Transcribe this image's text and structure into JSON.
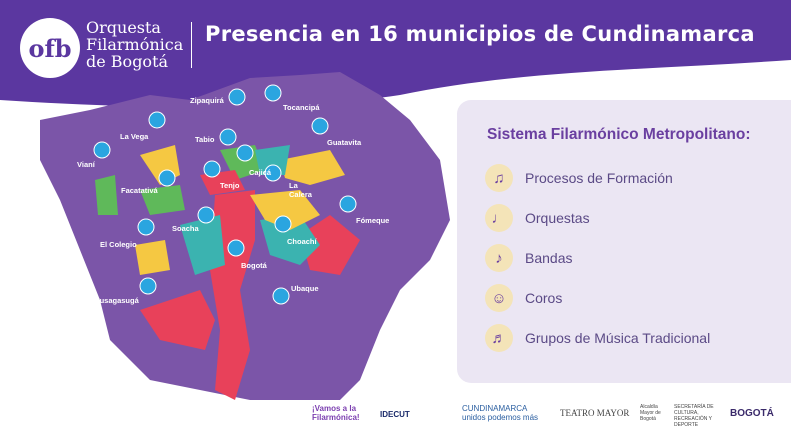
{
  "header": {
    "logo": "ofb",
    "brand_lines": [
      "Orquesta",
      "Filarmónica",
      "de Bogotá"
    ],
    "title": "Presencia en 16 municipios de Cundinamarca"
  },
  "map": {
    "municipalities": [
      "Zipaquirá",
      "Tocancipá",
      "La Vega",
      "Tabio",
      "Guatavita",
      "Vianí",
      "Cajicá",
      "Facatativá",
      "Tenjo",
      "La Calera",
      "Fómeque",
      "Soacha",
      "Choachí",
      "El Colegio",
      "Bogotá",
      "Ubaque",
      "Fusagasugá"
    ]
  },
  "panel": {
    "title": "Sistema Filarmónico Metropolitano:",
    "items": [
      {
        "label": "Procesos de Formación",
        "icon": "sheet-music-icon"
      },
      {
        "label": "Orquestas",
        "icon": "violin-icon"
      },
      {
        "label": "Bandas",
        "icon": "saxophone-icon"
      },
      {
        "label": "Coros",
        "icon": "choir-icon"
      },
      {
        "label": "Grupos de Música Tradicional",
        "icon": "guitar-icon"
      }
    ]
  },
  "footer": {
    "logos": [
      "¡Vamos a la Filarmónica!",
      "IDECUT",
      "CUNDINAMARCA unidos podemos más",
      "TEATRO MAYOR",
      "Alcaldía Mayor de Bogotá",
      "SECRETARÍA DE CULTURA, RECREACIÓN Y DEPORTE",
      "BOGOTÁ"
    ]
  },
  "colors": {
    "purple": "#5b37a0",
    "map": "#7b55a8",
    "red": "#e8415a",
    "yellow": "#f5c842",
    "green": "#5fb95a",
    "teal": "#3bb3b0",
    "pin": "#2aa5e0"
  }
}
